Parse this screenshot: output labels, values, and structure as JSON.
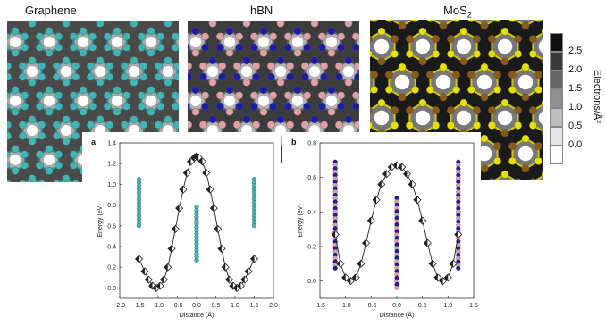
{
  "panels": {
    "graphene": {
      "label": "Graphene",
      "atom_colors": [
        "#3fb6b6"
      ]
    },
    "hbn": {
      "label": "hBN",
      "atom_colors": [
        "#1c1ca8",
        "#e2a0a6"
      ]
    },
    "mos2": {
      "label_main": "MoS",
      "label_sub": "2",
      "atom_colors": [
        "#e6e000",
        "#8a5a16"
      ]
    }
  },
  "colorbar": {
    "ticks": [
      "2.5",
      "2.0",
      "1.5",
      "1.0",
      "0.5",
      "0.0"
    ],
    "label": "Electrons/Å²",
    "colors": [
      "#101010",
      "#3a3a3a",
      "#666666",
      "#8f8f8f",
      "#bdbdbd",
      "#e6e6e6",
      "#ffffff"
    ]
  },
  "chart_data": [
    {
      "type": "line",
      "panel_letter": "a",
      "xlabel": "Distance (Å)",
      "ylabel": "Energy (eV)",
      "xlim": [
        -2.0,
        2.0
      ],
      "ylim": [
        -0.1,
        1.4
      ],
      "xticks": [
        "-2.0",
        "-1.5",
        "-1.0",
        "-0.5",
        "0.0",
        "0.5",
        "1.0",
        "1.5",
        "2.0"
      ],
      "yticks": [
        "0.0",
        "0.2",
        "0.4",
        "0.6",
        "0.8",
        "1.0",
        "1.2",
        "1.4"
      ],
      "series": [
        {
          "x": [
            -1.5,
            -1.35,
            -1.25,
            -1.15,
            -1.05,
            -0.95,
            -0.85,
            -0.75,
            -0.65,
            -0.55,
            -0.45,
            -0.35,
            -0.25,
            -0.15,
            -0.05,
            0.0,
            0.05,
            0.15,
            0.25,
            0.35,
            0.45,
            0.55,
            0.65,
            0.75,
            0.85,
            0.95,
            1.05,
            1.15,
            1.25,
            1.35,
            1.5
          ],
          "y": [
            0.28,
            0.16,
            0.08,
            0.02,
            0.0,
            0.02,
            0.08,
            0.2,
            0.38,
            0.57,
            0.77,
            0.95,
            1.11,
            1.22,
            1.26,
            1.27,
            1.26,
            1.22,
            1.11,
            0.95,
            0.77,
            0.57,
            0.38,
            0.2,
            0.08,
            0.02,
            0.0,
            0.02,
            0.08,
            0.16,
            0.28
          ]
        }
      ]
    },
    {
      "type": "line",
      "panel_letter": "b",
      "xlabel": "Distance (Å)",
      "ylabel": "Energy (eV)",
      "xlim": [
        -1.5,
        1.5
      ],
      "ylim": [
        -0.1,
        0.8
      ],
      "xticks": [
        "-1.5",
        "-1.0",
        "-0.5",
        "0.0",
        "0.5",
        "1.0",
        "1.5"
      ],
      "yticks": [
        "0.0",
        "0.2",
        "0.4",
        "0.6",
        "0.8"
      ],
      "series": [
        {
          "x": [
            -1.2,
            -1.1,
            -1.0,
            -0.9,
            -0.8,
            -0.7,
            -0.6,
            -0.5,
            -0.4,
            -0.3,
            -0.2,
            -0.1,
            0.0,
            0.1,
            0.2,
            0.3,
            0.4,
            0.5,
            0.6,
            0.7,
            0.8,
            0.9,
            1.0,
            1.1,
            1.2
          ],
          "y": [
            0.27,
            0.1,
            0.02,
            0.0,
            0.02,
            0.1,
            0.22,
            0.35,
            0.47,
            0.56,
            0.62,
            0.66,
            0.67,
            0.66,
            0.62,
            0.56,
            0.47,
            0.35,
            0.22,
            0.1,
            0.02,
            0.0,
            0.02,
            0.1,
            0.27
          ]
        }
      ]
    }
  ]
}
